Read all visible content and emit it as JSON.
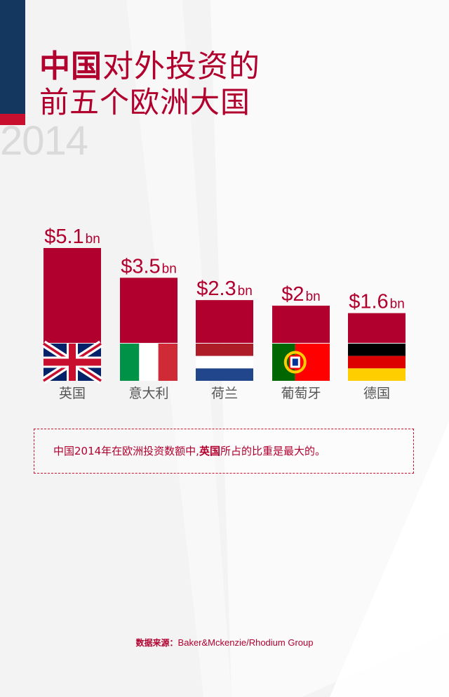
{
  "title": {
    "line1_bold": "中国",
    "line1_rest": "对外投资的",
    "line2": "前五个欧洲大国"
  },
  "year": "2014",
  "chart_data": {
    "type": "bar",
    "title": "中国对外投资的前五个欧洲大国 2014",
    "unit": "bn",
    "categories": [
      "英国",
      "意大利",
      "荷兰",
      "葡萄牙",
      "德国"
    ],
    "values": [
      5.1,
      3.5,
      2.3,
      2,
      1.6
    ],
    "value_labels": [
      "$5.1",
      "$3.5",
      "$2.3",
      "$2",
      "$1.6"
    ],
    "flags": [
      "uk-flag",
      "italy-flag",
      "netherlands-flag",
      "portugal-flag",
      "germany-flag"
    ],
    "ylim": [
      0,
      5.1
    ],
    "xlabel": "",
    "ylabel": ""
  },
  "note": {
    "before": "中国2014年在欧洲投资数额中,",
    "highlight": "英国",
    "after": "所占的比重是最大的。"
  },
  "source": {
    "label": "数据来源：",
    "text": "Baker&Mckenzie/Rhodium Group"
  },
  "colors": {
    "accent": "#b1002e",
    "navy": "#14375f",
    "red": "#c8102e"
  }
}
